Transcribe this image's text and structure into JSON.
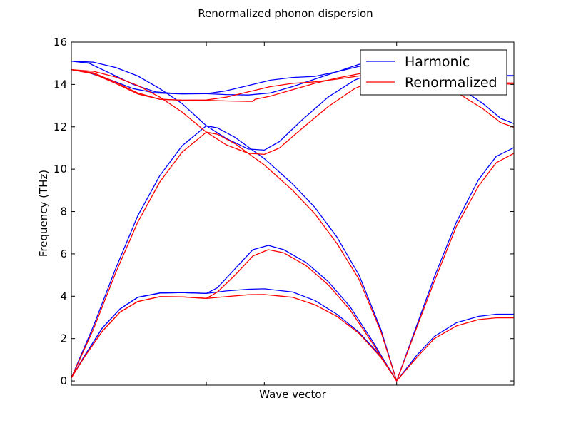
{
  "chart_data": {
    "type": "line",
    "title": "Renormalized phonon dispersion",
    "xlabel": "Wave vector",
    "ylabel": "Frequency (THz)",
    "xlim": [
      0,
      1
    ],
    "ylim": [
      -0.2,
      16
    ],
    "yticks": [
      0,
      2,
      4,
      6,
      8,
      10,
      12,
      14,
      16
    ],
    "xticks_at": [
      0,
      0.305,
      0.436,
      0.735,
      1
    ],
    "grid": false,
    "legend_position": "top-right",
    "series": [
      {
        "name": "Harmonic",
        "color": "#0000ff",
        "bands": [
          [
            [
              0,
              0.15
            ],
            [
              0.03,
              1.2
            ],
            [
              0.07,
              2.5
            ],
            [
              0.11,
              3.4
            ],
            [
              0.15,
              3.95
            ],
            [
              0.2,
              4.15
            ],
            [
              0.25,
              4.17
            ],
            [
              0.305,
              4.13
            ],
            [
              0.35,
              4.25
            ],
            [
              0.4,
              4.33
            ],
            [
              0.436,
              4.35
            ],
            [
              0.5,
              4.2
            ],
            [
              0.55,
              3.8
            ],
            [
              0.6,
              3.15
            ],
            [
              0.65,
              2.3
            ],
            [
              0.7,
              1.15
            ],
            [
              0.735,
              0
            ],
            [
              0.78,
              1.2
            ],
            [
              0.82,
              2.1
            ],
            [
              0.87,
              2.75
            ],
            [
              0.92,
              3.05
            ],
            [
              0.96,
              3.15
            ],
            [
              1,
              3.15
            ]
          ],
          [
            [
              0,
              0.15
            ],
            [
              0.05,
              2.6
            ],
            [
              0.1,
              5.3
            ],
            [
              0.15,
              7.8
            ],
            [
              0.2,
              9.7
            ],
            [
              0.25,
              11.1
            ],
            [
              0.305,
              12.05
            ],
            [
              0.33,
              11.95
            ],
            [
              0.37,
              11.5
            ],
            [
              0.436,
              10.5
            ],
            [
              0.5,
              9.3
            ],
            [
              0.55,
              8.2
            ],
            [
              0.6,
              6.8
            ],
            [
              0.65,
              5.0
            ],
            [
              0.7,
              2.4
            ],
            [
              0.735,
              0
            ],
            [
              0.78,
              2.6
            ],
            [
              0.82,
              4.9
            ],
            [
              0.87,
              7.5
            ],
            [
              0.92,
              9.5
            ],
            [
              0.96,
              10.6
            ],
            [
              1,
              11.02
            ]
          ],
          [
            [
              0,
              0.15
            ],
            [
              0.03,
              1.2
            ],
            [
              0.07,
              2.5
            ],
            [
              0.11,
              3.4
            ],
            [
              0.15,
              3.95
            ],
            [
              0.2,
              4.15
            ],
            [
              0.25,
              4.17
            ],
            [
              0.305,
              4.13
            ],
            [
              0.33,
              4.4
            ],
            [
              0.37,
              5.3
            ],
            [
              0.41,
              6.2
            ],
            [
              0.445,
              6.4
            ],
            [
              0.48,
              6.2
            ],
            [
              0.53,
              5.6
            ],
            [
              0.58,
              4.7
            ],
            [
              0.63,
              3.5
            ],
            [
              0.68,
              1.9
            ],
            [
              0.735,
              0
            ]
          ],
          [
            [
              0,
              14.7
            ],
            [
              0.04,
              14.55
            ],
            [
              0.09,
              14.2
            ],
            [
              0.14,
              13.8
            ],
            [
              0.19,
              13.6
            ],
            [
              0.25,
              13.55
            ],
            [
              0.305,
              13.56
            ],
            [
              0.35,
              13.7
            ],
            [
              0.4,
              13.95
            ],
            [
              0.45,
              14.2
            ],
            [
              0.5,
              14.33
            ],
            [
              0.55,
              14.38
            ],
            [
              0.6,
              14.6
            ],
            [
              0.65,
              14.95
            ],
            [
              0.7,
              15.05
            ],
            [
              0.735,
              15.0
            ]
          ],
          [
            [
              0,
              15.1
            ],
            [
              0.05,
              15.05
            ],
            [
              0.1,
              14.8
            ],
            [
              0.15,
              14.4
            ],
            [
              0.2,
              13.8
            ],
            [
              0.25,
              13.1
            ],
            [
              0.305,
              12.05
            ],
            [
              0.35,
              11.45
            ],
            [
              0.4,
              10.95
            ],
            [
              0.436,
              10.9
            ],
            [
              0.47,
              11.3
            ],
            [
              0.52,
              12.3
            ],
            [
              0.58,
              13.4
            ],
            [
              0.64,
              14.2
            ],
            [
              0.7,
              14.7
            ],
            [
              0.735,
              14.9
            ]
          ],
          [
            [
              0,
              15.1
            ],
            [
              0.04,
              15.0
            ],
            [
              0.09,
              14.5
            ],
            [
              0.14,
              14.0
            ],
            [
              0.19,
              13.65
            ],
            [
              0.24,
              13.56
            ],
            [
              0.305,
              13.56
            ],
            [
              0.35,
              13.52
            ],
            [
              0.4,
              13.5
            ],
            [
              0.45,
              13.6
            ],
            [
              0.5,
              13.9
            ],
            [
              0.55,
              14.25
            ],
            [
              0.6,
              14.6
            ],
            [
              0.65,
              14.85
            ],
            [
              0.7,
              14.95
            ],
            [
              0.735,
              14.95
            ]
          ],
          [
            [
              0.735,
              14.95
            ],
            [
              0.78,
              14.85
            ],
            [
              0.83,
              14.4
            ],
            [
              0.88,
              13.8
            ],
            [
              0.93,
              13.1
            ],
            [
              0.97,
              12.4
            ],
            [
              1,
              12.15
            ]
          ],
          [
            [
              0.735,
              14.95
            ],
            [
              0.8,
              14.7
            ],
            [
              0.87,
              14.5
            ],
            [
              0.93,
              14.42
            ],
            [
              0.97,
              14.4
            ],
            [
              1,
              14.4
            ]
          ],
          [
            [
              0.735,
              14.95
            ],
            [
              0.8,
              14.8
            ],
            [
              0.87,
              14.6
            ],
            [
              0.93,
              14.45
            ],
            [
              0.97,
              14.42
            ],
            [
              1,
              14.42
            ]
          ]
        ]
      },
      {
        "name": "Renormalized",
        "color": "#ff0000",
        "bands": [
          [
            [
              0,
              0.15
            ],
            [
              0.03,
              1.15
            ],
            [
              0.07,
              2.35
            ],
            [
              0.11,
              3.25
            ],
            [
              0.15,
              3.75
            ],
            [
              0.2,
              3.98
            ],
            [
              0.25,
              3.97
            ],
            [
              0.305,
              3.9
            ],
            [
              0.35,
              3.98
            ],
            [
              0.4,
              4.07
            ],
            [
              0.436,
              4.08
            ],
            [
              0.5,
              3.95
            ],
            [
              0.55,
              3.6
            ],
            [
              0.6,
              3.05
            ],
            [
              0.65,
              2.25
            ],
            [
              0.7,
              1.1
            ],
            [
              0.735,
              0
            ],
            [
              0.78,
              1.1
            ],
            [
              0.82,
              2.0
            ],
            [
              0.87,
              2.6
            ],
            [
              0.92,
              2.9
            ],
            [
              0.96,
              2.98
            ],
            [
              1,
              2.98
            ]
          ],
          [
            [
              0,
              0.15
            ],
            [
              0.05,
              2.45
            ],
            [
              0.1,
              5.1
            ],
            [
              0.15,
              7.5
            ],
            [
              0.2,
              9.4
            ],
            [
              0.25,
              10.8
            ],
            [
              0.305,
              11.75
            ],
            [
              0.33,
              11.65
            ],
            [
              0.37,
              11.2
            ],
            [
              0.436,
              10.2
            ],
            [
              0.5,
              9.0
            ],
            [
              0.55,
              7.9
            ],
            [
              0.6,
              6.5
            ],
            [
              0.65,
              4.8
            ],
            [
              0.7,
              2.3
            ],
            [
              0.735,
              0
            ],
            [
              0.78,
              2.5
            ],
            [
              0.82,
              4.7
            ],
            [
              0.87,
              7.3
            ],
            [
              0.92,
              9.2
            ],
            [
              0.96,
              10.3
            ],
            [
              1,
              10.75
            ]
          ],
          [
            [
              0,
              0.15
            ],
            [
              0.03,
              1.15
            ],
            [
              0.07,
              2.35
            ],
            [
              0.11,
              3.25
            ],
            [
              0.15,
              3.75
            ],
            [
              0.2,
              3.98
            ],
            [
              0.25,
              3.97
            ],
            [
              0.305,
              3.9
            ],
            [
              0.33,
              4.2
            ],
            [
              0.37,
              5.0
            ],
            [
              0.41,
              5.9
            ],
            [
              0.445,
              6.2
            ],
            [
              0.48,
              6.05
            ],
            [
              0.53,
              5.45
            ],
            [
              0.58,
              4.55
            ],
            [
              0.63,
              3.35
            ],
            [
              0.68,
              1.8
            ],
            [
              0.735,
              0
            ]
          ],
          [
            [
              0,
              14.7
            ],
            [
              0.05,
              14.5
            ],
            [
              0.1,
              14.05
            ],
            [
              0.15,
              13.55
            ],
            [
              0.2,
              13.3
            ],
            [
              0.25,
              13.26
            ],
            [
              0.305,
              13.25
            ],
            [
              0.35,
              13.22
            ],
            [
              0.4,
              13.2
            ],
            [
              0.41,
              13.2
            ],
            [
              0.415,
              13.3
            ],
            [
              0.45,
              13.45
            ],
            [
              0.5,
              13.75
            ],
            [
              0.55,
              14.05
            ],
            [
              0.6,
              14.3
            ],
            [
              0.65,
              14.5
            ],
            [
              0.7,
              14.6
            ],
            [
              0.735,
              14.6
            ]
          ],
          [
            [
              0,
              14.7
            ],
            [
              0.05,
              14.62
            ],
            [
              0.1,
              14.35
            ],
            [
              0.15,
              13.95
            ],
            [
              0.2,
              13.4
            ],
            [
              0.25,
              12.7
            ],
            [
              0.305,
              11.75
            ],
            [
              0.35,
              11.15
            ],
            [
              0.4,
              10.75
            ],
            [
              0.436,
              10.7
            ],
            [
              0.47,
              11.0
            ],
            [
              0.52,
              11.9
            ],
            [
              0.58,
              12.95
            ],
            [
              0.64,
              13.8
            ],
            [
              0.7,
              14.35
            ],
            [
              0.735,
              14.6
            ]
          ],
          [
            [
              0,
              14.7
            ],
            [
              0.05,
              14.55
            ],
            [
              0.1,
              14.1
            ],
            [
              0.15,
              13.6
            ],
            [
              0.2,
              13.3
            ],
            [
              0.25,
              13.26
            ],
            [
              0.305,
              13.27
            ],
            [
              0.35,
              13.4
            ],
            [
              0.4,
              13.65
            ],
            [
              0.45,
              13.9
            ],
            [
              0.5,
              14.05
            ],
            [
              0.55,
              14.12
            ],
            [
              0.6,
              14.25
            ],
            [
              0.65,
              14.4
            ],
            [
              0.7,
              14.5
            ],
            [
              0.735,
              14.55
            ]
          ],
          [
            [
              0.735,
              14.55
            ],
            [
              0.78,
              14.45
            ],
            [
              0.83,
              14.05
            ],
            [
              0.88,
              13.5
            ],
            [
              0.93,
              12.85
            ],
            [
              0.97,
              12.2
            ],
            [
              1,
              11.98
            ]
          ],
          [
            [
              0.735,
              14.55
            ],
            [
              0.8,
              14.35
            ],
            [
              0.87,
              14.15
            ],
            [
              0.93,
              14.05
            ],
            [
              0.97,
              14.02
            ],
            [
              1,
              14.02
            ]
          ],
          [
            [
              0.735,
              14.55
            ],
            [
              0.8,
              14.4
            ],
            [
              0.87,
              14.2
            ],
            [
              0.93,
              14.1
            ],
            [
              0.97,
              14.07
            ],
            [
              1,
              14.07
            ]
          ]
        ]
      }
    ]
  }
}
